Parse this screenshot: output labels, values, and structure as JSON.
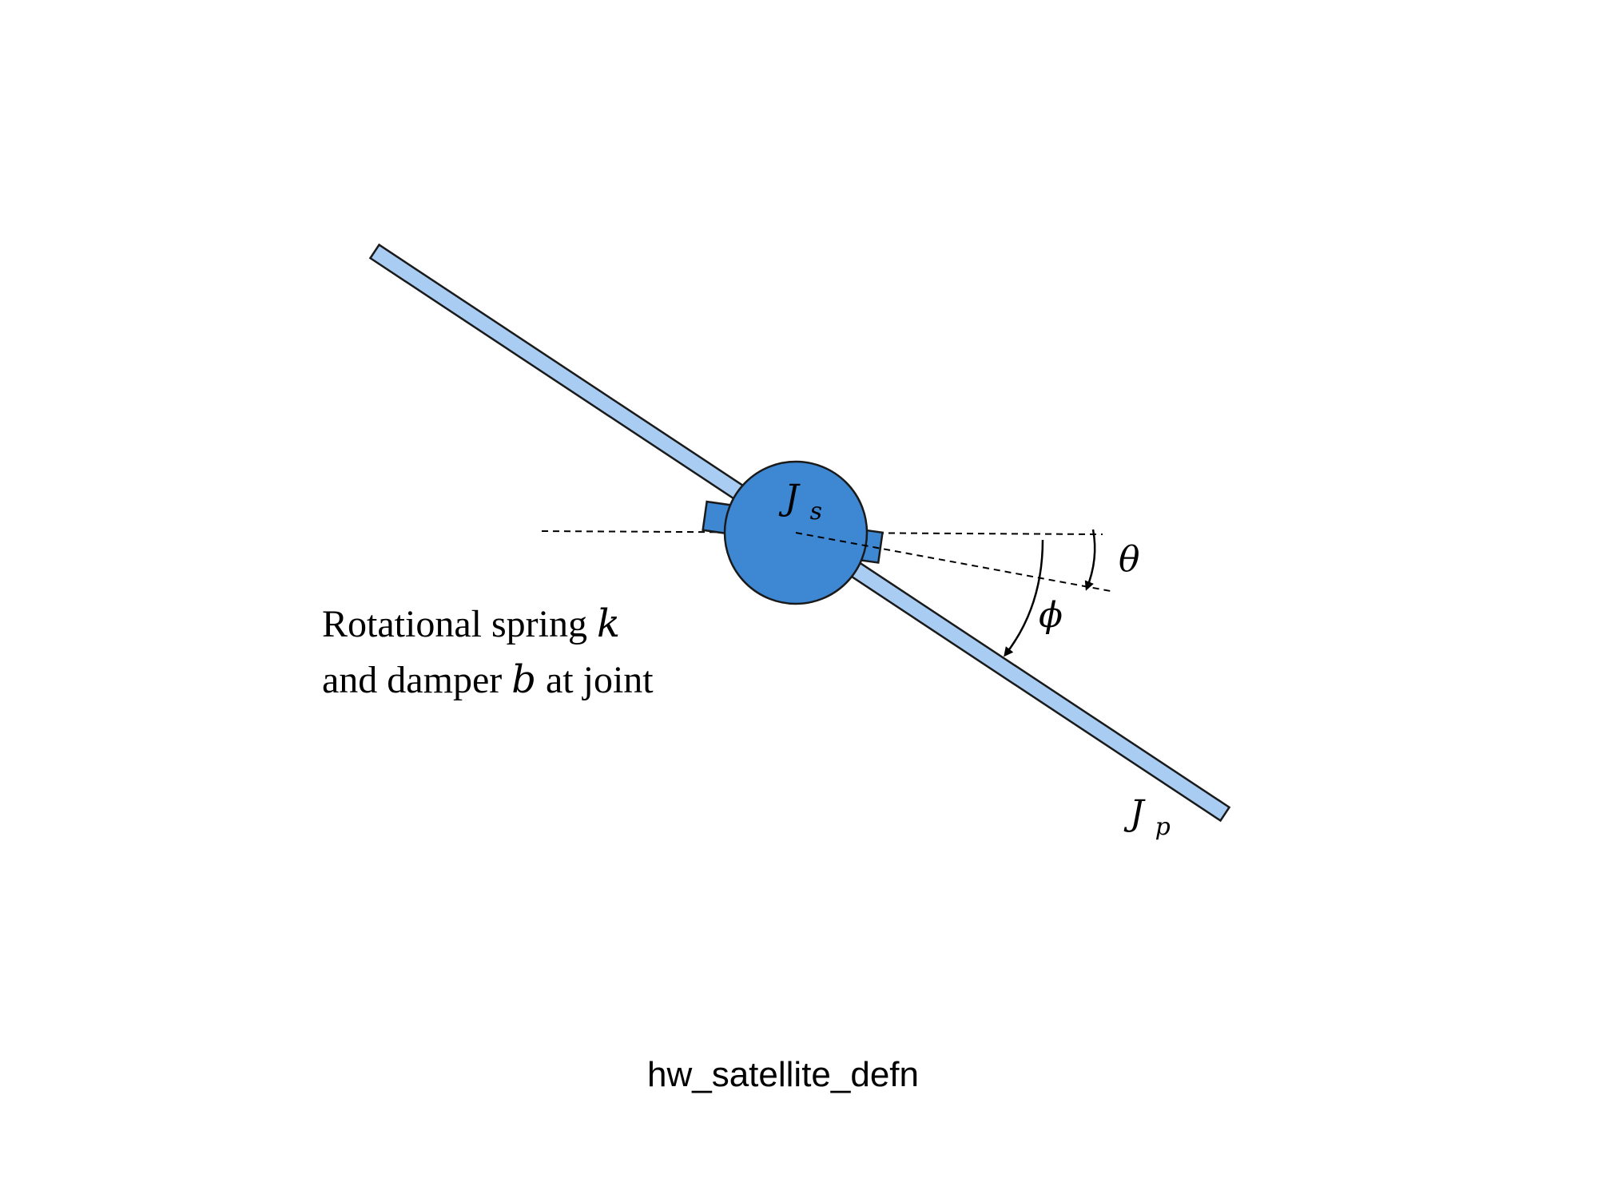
{
  "labels": {
    "satellite_inertia": {
      "symbol": "J",
      "subscript": "s"
    },
    "panel_inertia": {
      "symbol": "J",
      "subscript": "p"
    },
    "theta": "θ",
    "phi": "ϕ",
    "joint_line1": {
      "prefix": "Rotational spring ",
      "var": "k"
    },
    "joint_line2": {
      "prefix": "and damper ",
      "var": "b",
      "suffix": " at joint"
    }
  },
  "caption": "hw_satellite_defn",
  "colors": {
    "panel_fill": "#a9cdf2",
    "body_fill": "#3d87d3",
    "stroke": "#1a1a1a",
    "background": "#ffffff"
  }
}
